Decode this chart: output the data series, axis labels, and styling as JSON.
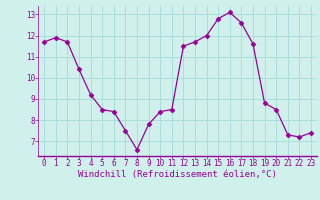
{
  "x": [
    0,
    1,
    2,
    3,
    4,
    5,
    6,
    7,
    8,
    9,
    10,
    11,
    12,
    13,
    14,
    15,
    16,
    17,
    18,
    19,
    20,
    21,
    22,
    23
  ],
  "y": [
    11.7,
    11.9,
    11.7,
    10.4,
    9.2,
    8.5,
    8.4,
    7.5,
    6.6,
    7.8,
    8.4,
    8.5,
    11.5,
    11.7,
    12.0,
    12.8,
    13.1,
    12.6,
    11.6,
    8.8,
    8.5,
    7.3,
    7.2,
    7.4
  ],
  "line_color": "#990099",
  "marker": "D",
  "marker_size": 2.5,
  "bg_color": "#cff0eb",
  "grid_color": "#aadddd",
  "xlabel": "Windchill (Refroidissement éolien,°C)",
  "xlim": [
    -0.5,
    23.5
  ],
  "ylim": [
    6.3,
    13.4
  ],
  "yticks": [
    7,
    8,
    9,
    10,
    11,
    12,
    13
  ],
  "xticks": [
    0,
    1,
    2,
    3,
    4,
    5,
    6,
    7,
    8,
    9,
    10,
    11,
    12,
    13,
    14,
    15,
    16,
    17,
    18,
    19,
    20,
    21,
    22,
    23
  ],
  "tick_fontsize": 5.5,
  "xlabel_fontsize": 6.5,
  "label_color": "#990099"
}
